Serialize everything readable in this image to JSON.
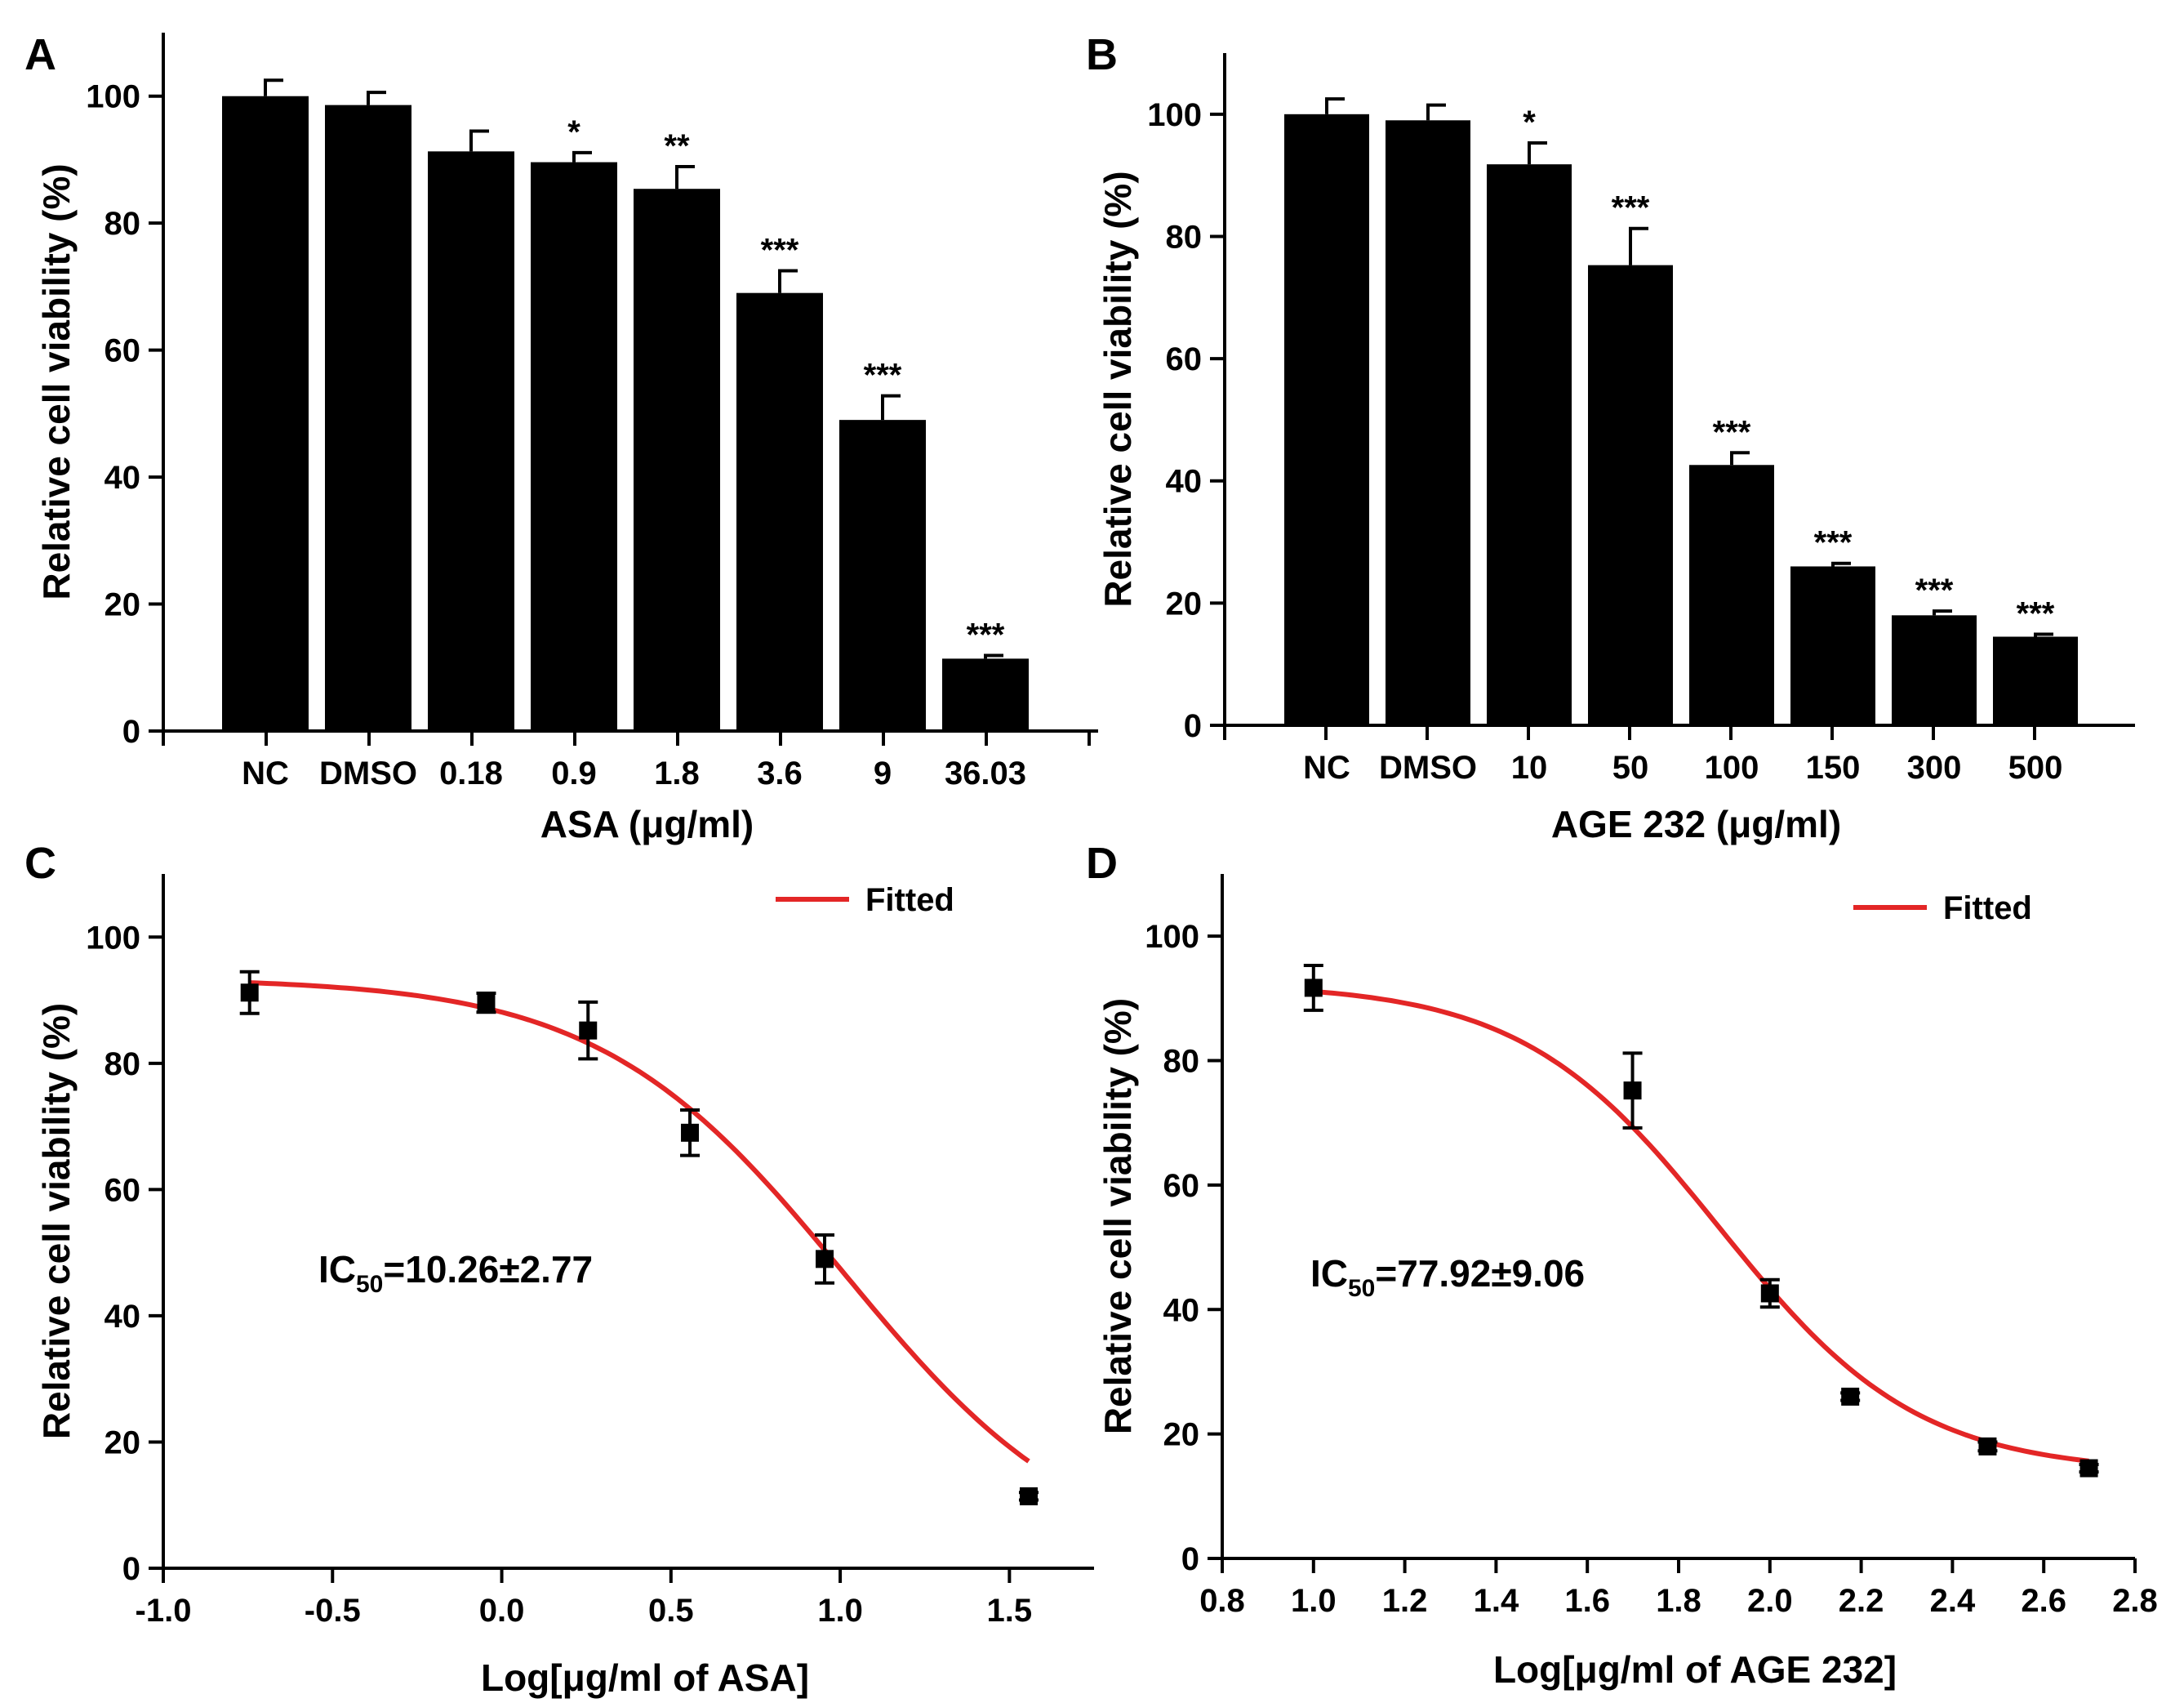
{
  "chart_data": [
    {
      "panel": "A",
      "type": "bar",
      "categories": [
        "NC",
        "DMSO",
        "0.18",
        "0.9",
        "1.8",
        "3.6",
        "9",
        "36.03"
      ],
      "values": [
        100,
        98.6,
        91.3,
        89.6,
        85.4,
        69,
        49,
        11.4
      ],
      "errors": [
        2.5,
        2.0,
        3.2,
        1.5,
        3.5,
        3.5,
        3.8,
        0.5
      ],
      "significance": [
        "",
        "",
        "",
        "*",
        "**",
        "***",
        "***",
        "***"
      ],
      "xlabel": "ASA (μg/ml)",
      "ylabel": "Relative cell viability (%)",
      "ylim": [
        0,
        110
      ],
      "yticks": [
        0,
        20,
        40,
        60,
        80,
        100
      ]
    },
    {
      "panel": "B",
      "type": "bar",
      "categories": [
        "NC",
        "DMSO",
        "10",
        "50",
        "100",
        "150",
        "300",
        "500"
      ],
      "values": [
        100,
        99,
        91.8,
        75.3,
        42.6,
        26,
        18,
        14.5
      ],
      "errors": [
        2.5,
        2.5,
        3.5,
        6.0,
        2.0,
        0.5,
        0.7,
        0.4
      ],
      "significance": [
        "",
        "",
        "*",
        "***",
        "***",
        "***",
        "***",
        "***"
      ],
      "xlabel": "AGE 232 (μg/ml)",
      "ylabel": "Relative cell viability (%)",
      "ylim": [
        0,
        110
      ],
      "yticks": [
        0,
        20,
        40,
        60,
        80,
        100
      ]
    },
    {
      "panel": "C",
      "type": "scatter",
      "points": [
        {
          "x": -0.745,
          "y": 91.2,
          "err": 3.3
        },
        {
          "x": -0.046,
          "y": 89.6,
          "err": 1.5
        },
        {
          "x": 0.255,
          "y": 85.2,
          "err": 4.5
        },
        {
          "x": 0.556,
          "y": 69.0,
          "err": 3.6
        },
        {
          "x": 0.954,
          "y": 49.0,
          "err": 3.8
        },
        {
          "x": 1.557,
          "y": 11.4,
          "err": 0.6
        }
      ],
      "fit": {
        "name": "Fitted",
        "bottom": 0,
        "top": 93.5,
        "logIC50": 1.011,
        "hill": 1.2,
        "xrange": [
          -0.745,
          1.557
        ]
      },
      "annotation": {
        "prefix": "IC",
        "subscript": "50",
        "value": "=10.26±2.77"
      },
      "xlabel": "Log[μg/ml of ASA]",
      "ylabel": "Relative cell viability (%)",
      "xlim": [
        -1.0,
        1.75
      ],
      "ylim": [
        0,
        110
      ],
      "xticks": [
        "-1.0",
        "-0.5",
        "0.0",
        "0.5",
        "1.0",
        "1.5"
      ],
      "yticks": [
        0,
        20,
        40,
        60,
        80,
        100
      ],
      "legend": {
        "position": "top-right",
        "label": "Fitted"
      }
    },
    {
      "panel": "D",
      "type": "scatter",
      "points": [
        {
          "x": 1.0,
          "y": 91.7,
          "err": 3.6
        },
        {
          "x": 1.699,
          "y": 75.2,
          "err": 6.0
        },
        {
          "x": 2.0,
          "y": 42.6,
          "err": 2.2
        },
        {
          "x": 2.176,
          "y": 26.0,
          "err": 0.6
        },
        {
          "x": 2.477,
          "y": 18.0,
          "err": 0.7
        },
        {
          "x": 2.699,
          "y": 14.5,
          "err": 0.6
        }
      ],
      "fit": {
        "name": "Fitted",
        "bottom": 13.8,
        "top": 92.4,
        "logIC50": 1.89,
        "hill": 2.0,
        "xrange": [
          1.0,
          2.699
        ]
      },
      "annotation": {
        "prefix": "IC",
        "subscript": "50",
        "value": "=77.92±9.06"
      },
      "xlabel": "Log[μg/ml of AGE 232]",
      "ylabel": "Relative cell viability (%)",
      "xlim": [
        0.8,
        2.8
      ],
      "ylim": [
        0,
        110
      ],
      "xticks": [
        "0.8",
        "1.0",
        "1.2",
        "1.4",
        "1.6",
        "1.8",
        "2.0",
        "2.2",
        "2.4",
        "2.6",
        "2.8"
      ],
      "yticks": [
        0,
        20,
        40,
        60,
        80,
        100
      ],
      "legend": {
        "position": "top-right",
        "label": "Fitted"
      }
    }
  ],
  "colors": {
    "bar": "#000000",
    "fit": "#e32626",
    "axis": "#000000"
  }
}
